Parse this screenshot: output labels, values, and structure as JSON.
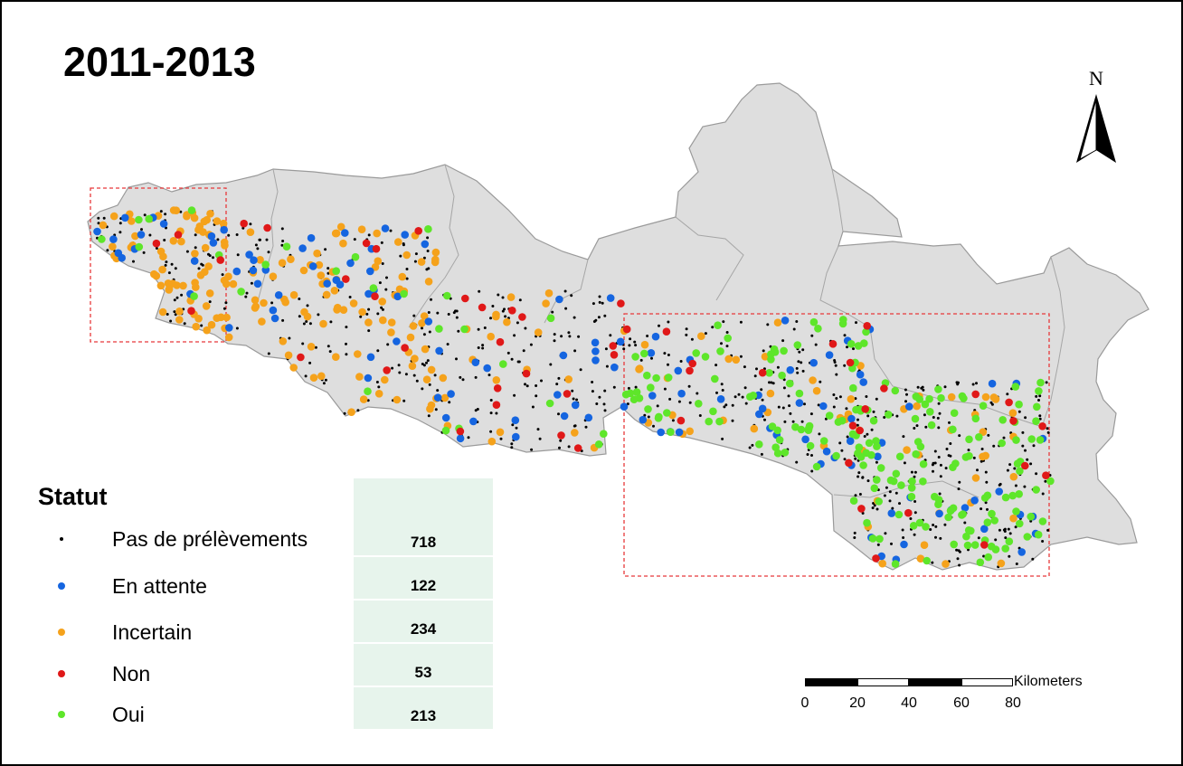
{
  "title": "2011-2013",
  "legend": {
    "title": "Statut",
    "items": [
      {
        "label": "Pas de prélèvements",
        "count": "718",
        "color": "#000000"
      },
      {
        "label": "En attente",
        "count": "122",
        "color": "#1565e0"
      },
      {
        "label": "Incertain",
        "count": "234",
        "color": "#f5a21b"
      },
      {
        "label": "Non",
        "count": "53",
        "color": "#e01818"
      },
      {
        "label": "Oui",
        "count": "213",
        "color": "#5ee62a"
      }
    ]
  },
  "scale": {
    "unit": "Kilometers",
    "ticks": [
      "0",
      "20",
      "40",
      "60",
      "80"
    ]
  },
  "north_arrow": {
    "letter": "N",
    "icon": "north-arrow-icon"
  },
  "colors": {
    "land": "#dedede",
    "border": "#9a9a9a",
    "highlight_box": "#e8383a"
  }
}
